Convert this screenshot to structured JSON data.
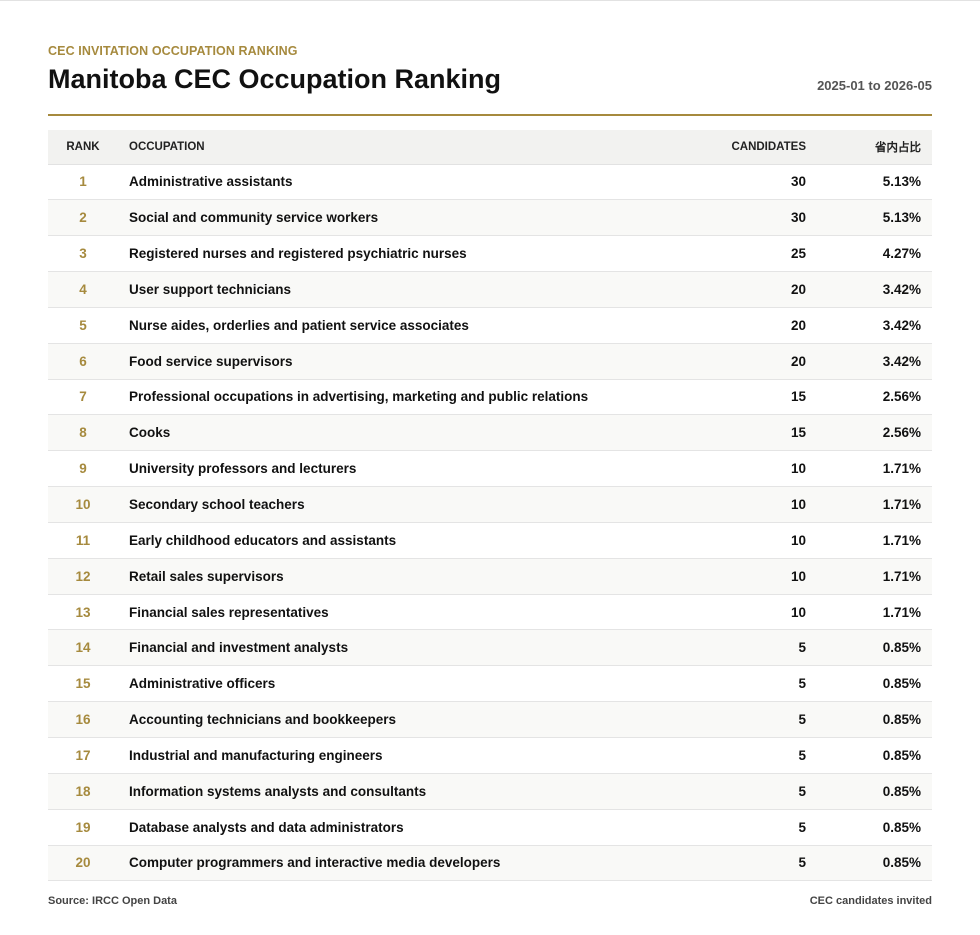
{
  "header": {
    "eyebrow": "CEC INVITATION OCCUPATION RANKING",
    "title": "Manitoba CEC Occupation Ranking",
    "date_range": "2025-01 to 2026-05"
  },
  "table": {
    "columns": {
      "rank": "RANK",
      "occupation": "OCCUPATION",
      "candidates": "CANDIDATES",
      "share": "省内占比"
    },
    "rows": [
      {
        "rank": "1",
        "occupation": "Administrative assistants",
        "candidates": "30",
        "share": "5.13%"
      },
      {
        "rank": "2",
        "occupation": "Social and community service workers",
        "candidates": "30",
        "share": "5.13%"
      },
      {
        "rank": "3",
        "occupation": "Registered nurses and registered psychiatric nurses",
        "candidates": "25",
        "share": "4.27%"
      },
      {
        "rank": "4",
        "occupation": "User support technicians",
        "candidates": "20",
        "share": "3.42%"
      },
      {
        "rank": "5",
        "occupation": "Nurse aides, orderlies and patient service associates",
        "candidates": "20",
        "share": "3.42%"
      },
      {
        "rank": "6",
        "occupation": "Food service supervisors",
        "candidates": "20",
        "share": "3.42%"
      },
      {
        "rank": "7",
        "occupation": "Professional occupations in advertising, marketing and public relations",
        "candidates": "15",
        "share": "2.56%"
      },
      {
        "rank": "8",
        "occupation": "Cooks",
        "candidates": "15",
        "share": "2.56%"
      },
      {
        "rank": "9",
        "occupation": "University professors and lecturers",
        "candidates": "10",
        "share": "1.71%"
      },
      {
        "rank": "10",
        "occupation": "Secondary school teachers",
        "candidates": "10",
        "share": "1.71%"
      },
      {
        "rank": "11",
        "occupation": "Early childhood educators and assistants",
        "candidates": "10",
        "share": "1.71%"
      },
      {
        "rank": "12",
        "occupation": "Retail sales supervisors",
        "candidates": "10",
        "share": "1.71%"
      },
      {
        "rank": "13",
        "occupation": "Financial sales representatives",
        "candidates": "10",
        "share": "1.71%"
      },
      {
        "rank": "14",
        "occupation": "Financial and investment analysts",
        "candidates": "5",
        "share": "0.85%"
      },
      {
        "rank": "15",
        "occupation": "Administrative officers",
        "candidates": "5",
        "share": "0.85%"
      },
      {
        "rank": "16",
        "occupation": "Accounting technicians and bookkeepers",
        "candidates": "5",
        "share": "0.85%"
      },
      {
        "rank": "17",
        "occupation": "Industrial and manufacturing engineers",
        "candidates": "5",
        "share": "0.85%"
      },
      {
        "rank": "18",
        "occupation": "Information systems analysts and consultants",
        "candidates": "5",
        "share": "0.85%"
      },
      {
        "rank": "19",
        "occupation": "Database analysts and data administrators",
        "candidates": "5",
        "share": "0.85%"
      },
      {
        "rank": "20",
        "occupation": "Computer programmers and interactive media developers",
        "candidates": "5",
        "share": "0.85%"
      }
    ]
  },
  "footer": {
    "source": "Source: IRCC Open Data",
    "note": "CEC candidates invited"
  },
  "colors": {
    "accent": "#a68a3e",
    "header_bg": "#f2f2f0",
    "row_alt_bg": "#f9f9f7"
  }
}
